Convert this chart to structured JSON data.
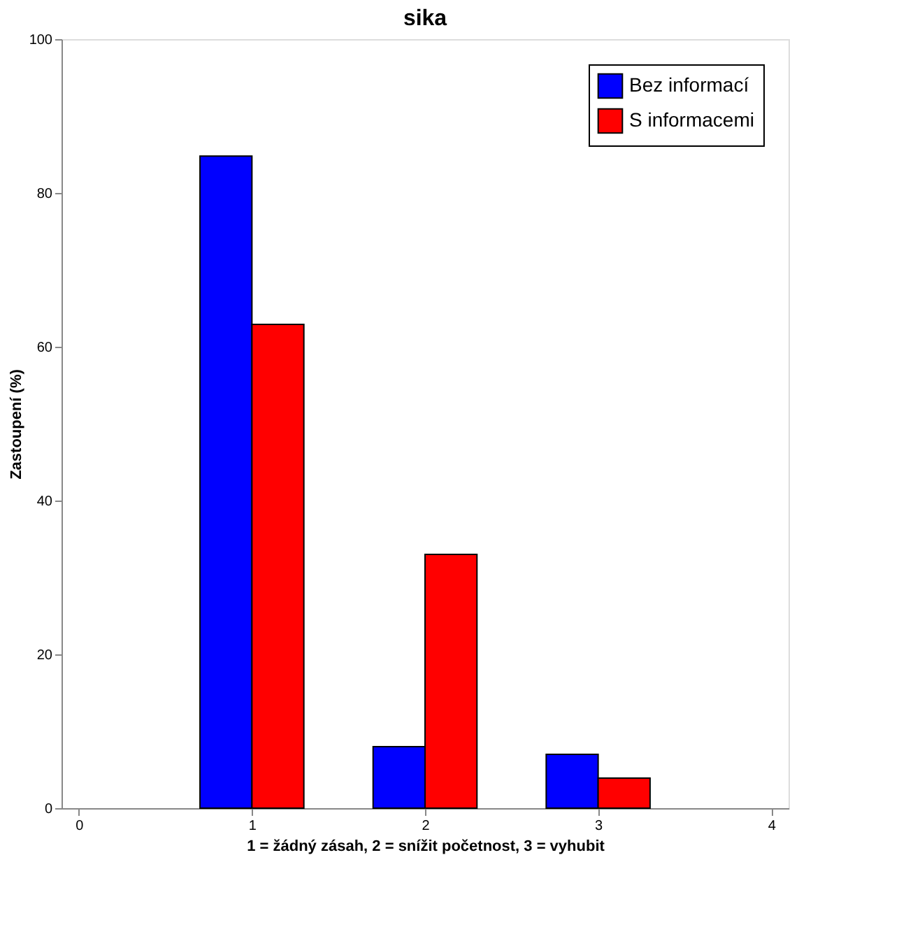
{
  "chart_data": {
    "type": "bar",
    "title": "sika",
    "xlabel": "1 = žádný zásah, 2 = snížit početnost, 3 = vyhubit",
    "ylabel": "Zastoupení (%)",
    "x": [
      1,
      2,
      3
    ],
    "series": [
      {
        "name": "Bez informací",
        "color": "#0000ff",
        "values": [
          84.8,
          8.0,
          7.0
        ]
      },
      {
        "name": "S informacemi",
        "color": "#ff0000",
        "values": [
          62.9,
          33.0,
          3.9
        ]
      }
    ],
    "xlim": [
      -0.1,
      4.1
    ],
    "xticks": [
      0,
      1,
      2,
      3,
      4
    ],
    "ylim": [
      0,
      100
    ],
    "yticks": [
      0,
      20,
      40,
      60,
      80,
      100
    ],
    "grid": false,
    "legend": "top right"
  }
}
